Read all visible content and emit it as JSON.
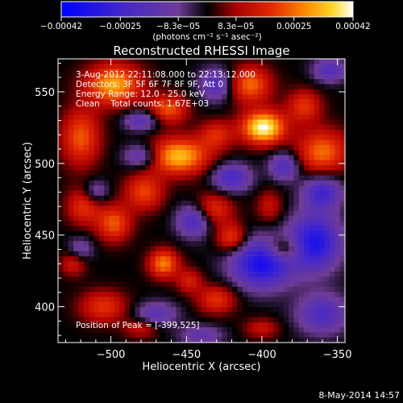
{
  "chart_data": {
    "type": "heatmap",
    "title": "Reconstructed RHESSI Image",
    "xlabel": "Heliocentric X (arcsec)",
    "ylabel": "Heliocentric Y (arcsec)",
    "xlim": [
      -535,
      -345
    ],
    "ylim": [
      375,
      573
    ],
    "x_ticks": [
      -500,
      -450,
      -400,
      -350
    ],
    "x_tick_labels": [
      "−500",
      "−450",
      "−400",
      "−350"
    ],
    "y_ticks": [
      400,
      450,
      500,
      550
    ],
    "y_tick_labels": [
      "400",
      "450",
      "500",
      "550"
    ],
    "colorbar": {
      "range": [
        -0.00042,
        0.00042
      ],
      "tick_values": [
        -0.00042,
        -0.00025,
        -8.3e-05,
        8.3e-05,
        0.00025,
        0.00042
      ],
      "tick_labels": [
        "−0.00042",
        "−0.00025",
        "−8.3e−05",
        "8.3e−05",
        "0.00025",
        "0.00042"
      ],
      "unit_label": "(photons cm⁻² s⁻¹ asec⁻²)"
    },
    "annotations": {
      "time": "3-Aug-2012 22:11:08.000 to 22:13:12.000",
      "detectors": "Detectors: 3F 5F 6F 7F 8F 9F, Att 0",
      "energy": "Energy Range: 12.0 - 25.0 keV",
      "method": "Clean    Total counts: 1.67E+03",
      "peak": "Position of Peak = [-399,525]"
    },
    "blobs": [
      {
        "x": -399,
        "y": 525,
        "amp": 1.0,
        "sx": 10,
        "sy": 8
      },
      {
        "x": -455,
        "y": 505,
        "amp": 0.8,
        "sx": 14,
        "sy": 9
      },
      {
        "x": -498,
        "y": 555,
        "amp": 0.75,
        "sx": 13,
        "sy": 10
      },
      {
        "x": -462,
        "y": 538,
        "amp": 0.55,
        "sx": 9,
        "sy": 7
      },
      {
        "x": -408,
        "y": 555,
        "amp": 0.6,
        "sx": 10,
        "sy": 9
      },
      {
        "x": -360,
        "y": 508,
        "amp": 0.6,
        "sx": 12,
        "sy": 11
      },
      {
        "x": -372,
        "y": 540,
        "amp": 0.45,
        "sx": 8,
        "sy": 8
      },
      {
        "x": -520,
        "y": 518,
        "amp": 0.55,
        "sx": 9,
        "sy": 14
      },
      {
        "x": -478,
        "y": 480,
        "amp": 0.5,
        "sx": 9,
        "sy": 9
      },
      {
        "x": -498,
        "y": 458,
        "amp": 0.55,
        "sx": 8,
        "sy": 9
      },
      {
        "x": -432,
        "y": 468,
        "amp": 0.45,
        "sx": 9,
        "sy": 8
      },
      {
        "x": -518,
        "y": 470,
        "amp": 0.45,
        "sx": 8,
        "sy": 9
      },
      {
        "x": -465,
        "y": 430,
        "amp": 0.65,
        "sx": 7,
        "sy": 7
      },
      {
        "x": -420,
        "y": 448,
        "amp": 0.5,
        "sx": 7,
        "sy": 7
      },
      {
        "x": -385,
        "y": 440,
        "amp": 0.45,
        "sx": 8,
        "sy": 6
      },
      {
        "x": -505,
        "y": 400,
        "amp": 0.45,
        "sx": 11,
        "sy": 8
      },
      {
        "x": -430,
        "y": 405,
        "amp": 0.45,
        "sx": 9,
        "sy": 7
      },
      {
        "x": -448,
        "y": 418,
        "amp": 0.35,
        "sx": 6,
        "sy": 6
      },
      {
        "x": -525,
        "y": 430,
        "amp": 0.35,
        "sx": 6,
        "sy": 6
      },
      {
        "x": -430,
        "y": 520,
        "amp": 0.4,
        "sx": 8,
        "sy": 7
      },
      {
        "x": -395,
        "y": 470,
        "amp": 0.3,
        "sx": 6,
        "sy": 8
      },
      {
        "x": -400,
        "y": 385,
        "amp": 0.3,
        "sx": 8,
        "sy": 5
      },
      {
        "x": -480,
        "y": 385,
        "amp": 0.3,
        "sx": 8,
        "sy": 5
      },
      {
        "x": -400,
        "y": 430,
        "amp": -0.85,
        "sx": 14,
        "sy": 12
      },
      {
        "x": -365,
        "y": 445,
        "amp": -0.8,
        "sx": 12,
        "sy": 14
      },
      {
        "x": -445,
        "y": 460,
        "amp": -0.55,
        "sx": 8,
        "sy": 8
      },
      {
        "x": -420,
        "y": 490,
        "amp": -0.55,
        "sx": 9,
        "sy": 7
      },
      {
        "x": -360,
        "y": 480,
        "amp": -0.6,
        "sx": 9,
        "sy": 8
      },
      {
        "x": -480,
        "y": 505,
        "amp": -0.45,
        "sx": 8,
        "sy": 6
      },
      {
        "x": -480,
        "y": 530,
        "amp": -0.45,
        "sx": 8,
        "sy": 5
      },
      {
        "x": -430,
        "y": 555,
        "amp": -0.5,
        "sx": 8,
        "sy": 8
      },
      {
        "x": -510,
        "y": 480,
        "amp": -0.35,
        "sx": 6,
        "sy": 6
      },
      {
        "x": -470,
        "y": 395,
        "amp": -0.4,
        "sx": 10,
        "sy": 6
      },
      {
        "x": -520,
        "y": 440,
        "amp": -0.3,
        "sx": 6,
        "sy": 6
      },
      {
        "x": -360,
        "y": 395,
        "amp": -0.5,
        "sx": 12,
        "sy": 10
      },
      {
        "x": -440,
        "y": 380,
        "amp": -0.35,
        "sx": 10,
        "sy": 5
      },
      {
        "x": -385,
        "y": 498,
        "amp": -0.5,
        "sx": 7,
        "sy": 7
      },
      {
        "x": -355,
        "y": 565,
        "amp": -0.45,
        "sx": 8,
        "sy": 6
      }
    ]
  },
  "footer": {
    "date": "8-May-2014 14:57"
  },
  "colors": {
    "background": "#000000",
    "text": "#ffffff"
  }
}
